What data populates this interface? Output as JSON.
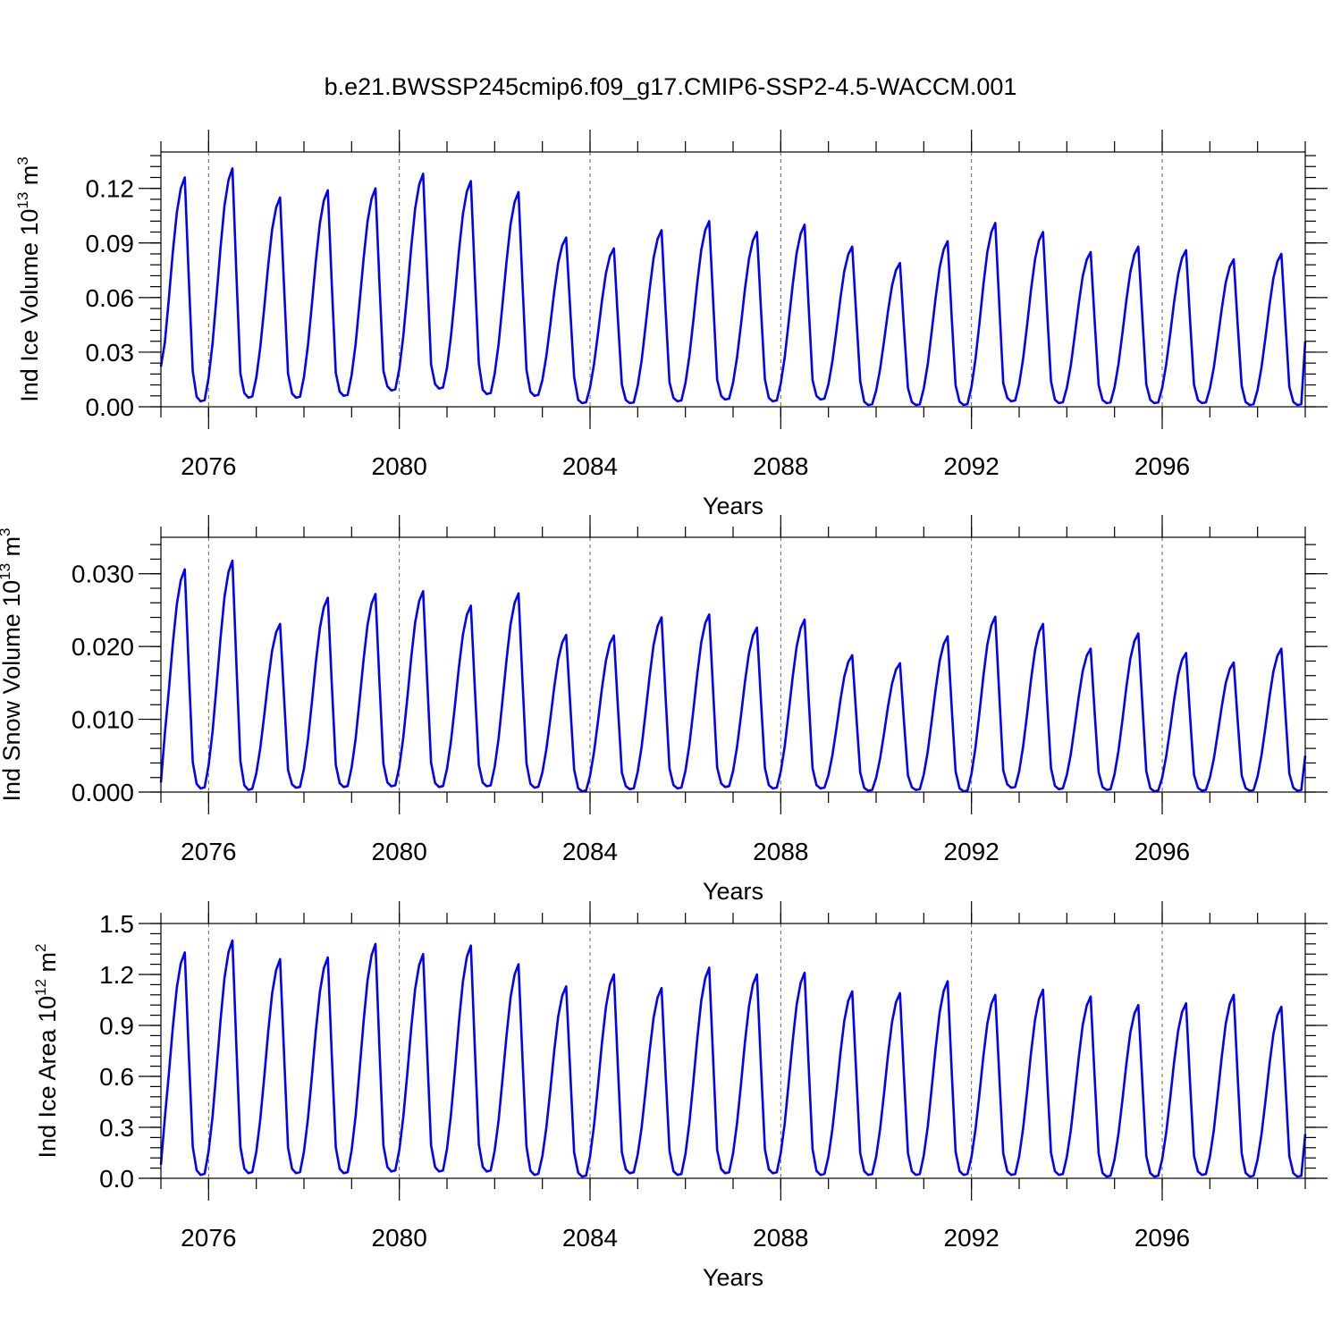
{
  "title": "b.e21.BWSSP245cmip6.f09_g17.CMIP6-SSP2-4.5-WACCM.001",
  "colors": {
    "line": "#0000ff",
    "axis": "#000000",
    "grid": "#666666"
  },
  "chart_data": [
    {
      "type": "line",
      "ylabel_main": "Ind Ice Volume 10",
      "ylabel_exp": "13",
      "ylabel_unit": "m",
      "ylabel_unit_exp": "3",
      "xlabel": "Years",
      "xlim": [
        2075.0,
        2099.0
      ],
      "ylim": [
        0.0,
        0.14
      ],
      "yticks": [
        0.0,
        0.03,
        0.06,
        0.09,
        0.12
      ],
      "ytick_labels": [
        "0.00",
        "0.03",
        "0.06",
        "0.09",
        "0.12"
      ],
      "xticks": [
        2076,
        2080,
        2084,
        2088,
        2092,
        2096
      ],
      "xtick_labels": [
        "2076",
        "2080",
        "2084",
        "2088",
        "2092",
        "2096"
      ],
      "grid": "dashed vertical at x ticks",
      "series": [
        {
          "color": "#0000ff",
          "peaks": [
            0.126,
            0.131,
            0.115,
            0.119,
            0.12,
            0.128,
            0.124,
            0.118,
            0.093,
            0.087,
            0.097,
            0.102,
            0.096,
            0.1,
            0.088,
            0.079,
            0.091,
            0.101,
            0.096,
            0.085,
            0.088,
            0.086,
            0.081,
            0.084
          ],
          "minima": [
            0.005,
            0.003,
            0.005,
            0.005,
            0.006,
            0.009,
            0.01,
            0.007,
            0.006,
            0.002,
            0.002,
            0.003,
            0.004,
            0.003,
            0.004,
            0.001,
            0.001,
            0.001,
            0.003,
            0.002,
            0.002,
            0.002,
            0.002,
            0.001
          ],
          "start_value": 0.022,
          "end_value": 0.036
        }
      ]
    },
    {
      "type": "line",
      "ylabel_main": "Ind Snow Volume 10",
      "ylabel_exp": "13",
      "ylabel_unit": "m",
      "ylabel_unit_exp": "3",
      "xlabel": "Years",
      "xlim": [
        2075.0,
        2099.0
      ],
      "ylim": [
        0.0,
        0.035
      ],
      "yticks": [
        0.0,
        0.01,
        0.02,
        0.03
      ],
      "ytick_labels": [
        "0.000",
        "0.010",
        "0.020",
        "0.030"
      ],
      "xticks": [
        2076,
        2080,
        2084,
        2088,
        2092,
        2096
      ],
      "xtick_labels": [
        "2076",
        "2080",
        "2084",
        "2088",
        "2092",
        "2096"
      ],
      "grid": "dashed vertical at x ticks",
      "series": [
        {
          "color": "#0000ff",
          "peaks": [
            0.0306,
            0.0318,
            0.0231,
            0.0267,
            0.0272,
            0.0276,
            0.0256,
            0.0273,
            0.0216,
            0.0215,
            0.024,
            0.0244,
            0.0226,
            0.0237,
            0.0188,
            0.0177,
            0.0214,
            0.0241,
            0.0231,
            0.0197,
            0.0218,
            0.0191,
            0.0178,
            0.0197
          ],
          "minima": [
            0.0005,
            0.0005,
            0.0003,
            0.0006,
            0.0007,
            0.0008,
            0.0007,
            0.0008,
            0.0006,
            0.0001,
            0.0004,
            0.0005,
            0.0007,
            0.0005,
            0.0005,
            0.0002,
            0.0003,
            0.0001,
            0.0006,
            0.0004,
            0.0003,
            0.0001,
            0.0002,
            0.0002
          ],
          "start_value": 0.0013,
          "end_value": 0.005
        }
      ]
    },
    {
      "type": "line",
      "ylabel_main": "Ind Ice Area 10",
      "ylabel_exp": "12",
      "ylabel_unit": "m",
      "ylabel_unit_exp": "2",
      "xlabel": "Years",
      "xlim": [
        2075.0,
        2099.0
      ],
      "ylim": [
        0.0,
        1.5
      ],
      "yticks": [
        0.0,
        0.3,
        0.6,
        0.9,
        1.2,
        1.5
      ],
      "ytick_labels": [
        "0.0",
        "0.3",
        "0.6",
        "0.9",
        "1.2",
        "1.5"
      ],
      "xticks": [
        2076,
        2080,
        2084,
        2088,
        2092,
        2096
      ],
      "xtick_labels": [
        "2076",
        "2080",
        "2084",
        "2088",
        "2092",
        "2096"
      ],
      "grid": "dashed vertical at x ticks",
      "series": [
        {
          "color": "#0000ff",
          "peaks": [
            1.33,
            1.4,
            1.29,
            1.3,
            1.38,
            1.32,
            1.37,
            1.26,
            1.13,
            1.2,
            1.12,
            1.24,
            1.2,
            1.21,
            1.1,
            1.09,
            1.16,
            1.08,
            1.11,
            1.07,
            1.02,
            1.03,
            1.08,
            1.01
          ],
          "minima": [
            0.03,
            0.02,
            0.03,
            0.03,
            0.03,
            0.04,
            0.04,
            0.04,
            0.02,
            0.01,
            0.03,
            0.02,
            0.03,
            0.03,
            0.02,
            0.02,
            0.02,
            0.02,
            0.02,
            0.02,
            0.01,
            0.01,
            0.02,
            0.01
          ],
          "start_value": 0.08,
          "end_value": 0.26
        }
      ]
    }
  ]
}
